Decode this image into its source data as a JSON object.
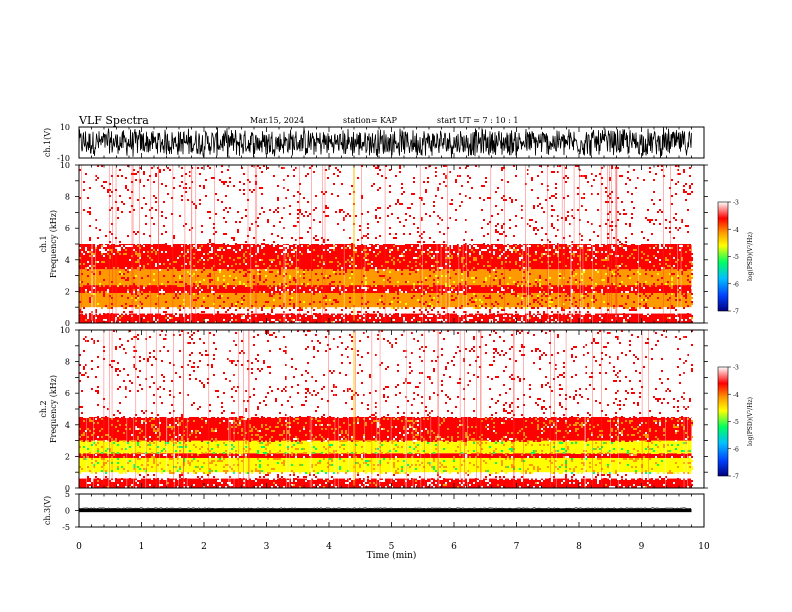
{
  "header": {
    "title": "VLF Spectra",
    "date": "Mar.15, 2024",
    "station": "station= KAP",
    "start": "start UT = 7 : 10 : 1"
  },
  "colors": {
    "colormap": [
      "#000080",
      "#0040ff",
      "#00c0ff",
      "#00ff60",
      "#ffff00",
      "#ff9900",
      "#ff0000",
      "#ffffff"
    ],
    "trace": "#000000"
  },
  "chart_data": [
    {
      "type": "line",
      "panel": "ch1-waveform",
      "ylabel": "ch.1(V)",
      "ylim": [
        -10,
        10
      ],
      "ytick_labels": [
        "10",
        "-10"
      ],
      "description_values": "noise-like voltage waveform spanning nearly full ±10 V range over 0–9.8 min"
    },
    {
      "type": "heatmap",
      "panel": "ch1-spectrogram",
      "ylabel": "ch.1 Frequency (kHz)",
      "ylim": [
        0,
        10
      ],
      "ytick_labels": [
        "0",
        "2",
        "4",
        "6",
        "8",
        "10"
      ],
      "xlim": [
        0,
        10
      ],
      "data_end_min": 9.8,
      "colorbar": {
        "label": "log(PSD)(V²/Hz)",
        "range": [
          -7,
          -3
        ],
        "tick_labels": [
          "-3",
          "-4",
          "-5",
          "-6",
          "-7"
        ]
      },
      "bands": [
        {
          "f_low": 0.0,
          "f_high": 0.6,
          "level": -3.4
        },
        {
          "f_low": 0.6,
          "f_high": 1.0,
          "level": -3.1
        },
        {
          "f_low": 1.0,
          "f_high": 1.9,
          "level": -4.0
        },
        {
          "f_low": 1.9,
          "f_high": 2.4,
          "level": -3.5
        },
        {
          "f_low": 2.4,
          "f_high": 3.4,
          "level": -4.1
        },
        {
          "f_low": 3.4,
          "f_high": 5.0,
          "level": -3.7
        },
        {
          "f_low": 5.0,
          "f_high": 10.0,
          "level": -3.2
        }
      ]
    },
    {
      "type": "heatmap",
      "panel": "ch2-spectrogram",
      "ylabel": "ch.2 Frequency (kHz)",
      "ylim": [
        0,
        10
      ],
      "ytick_labels": [
        "0",
        "2",
        "4",
        "6",
        "8",
        "10"
      ],
      "xlim": [
        0,
        10
      ],
      "data_end_min": 9.8,
      "colorbar": {
        "label": "log(PSD)(V²/Hz)",
        "range": [
          -7,
          -3
        ],
        "tick_labels": [
          "-3",
          "-4",
          "-5",
          "-6",
          "-7"
        ]
      },
      "bands": [
        {
          "f_low": 0.0,
          "f_high": 0.6,
          "level": -3.4
        },
        {
          "f_low": 0.6,
          "f_high": 1.0,
          "level": -3.1
        },
        {
          "f_low": 1.0,
          "f_high": 1.9,
          "level": -4.6
        },
        {
          "f_low": 1.9,
          "f_high": 2.2,
          "level": -3.6
        },
        {
          "f_low": 2.2,
          "f_high": 3.0,
          "level": -4.7
        },
        {
          "f_low": 3.0,
          "f_high": 4.5,
          "level": -3.7
        },
        {
          "f_low": 4.5,
          "f_high": 10.0,
          "level": -3.2
        }
      ]
    },
    {
      "type": "line",
      "panel": "ch3-waveform",
      "ylabel": "ch.3(V)",
      "ylim": [
        -5,
        5
      ],
      "ytick_labels": [
        "5",
        "0",
        "-5"
      ],
      "xlabel": "Time (min)",
      "xlim": [
        0,
        10
      ],
      "xtick_labels": [
        "0",
        "1",
        "2",
        "3",
        "4",
        "5",
        "6",
        "7",
        "8",
        "9",
        "10"
      ],
      "description_values": "constant-width band near 0 V (about ±0.5 V) over 0–9.8 min"
    }
  ]
}
